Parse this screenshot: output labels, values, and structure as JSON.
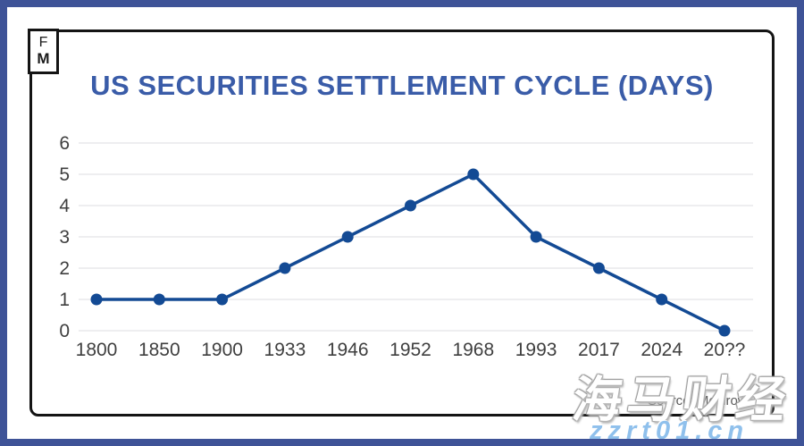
{
  "logo": {
    "line1": "F",
    "line2": "M"
  },
  "title": "US SECURITIES SETTLEMENT CYCLE (DAYS)",
  "source_note": "Source: Mesirow",
  "watermark": {
    "cjk": "海马财经",
    "url": "zzrt01.cn"
  },
  "colors": {
    "frame": "#3e5397",
    "title": "#3a5ca8",
    "line": "#134a94",
    "point": "#134a94",
    "grid": "#e9e9ec",
    "axis_text": "#3f3f3f"
  },
  "chart_data": {
    "type": "line",
    "title": "US SECURITIES SETTLEMENT CYCLE (DAYS)",
    "categories": [
      "1800",
      "1850",
      "1900",
      "1933",
      "1946",
      "1952",
      "1968",
      "1993",
      "2017",
      "2024",
      "20??"
    ],
    "values": [
      1,
      1,
      1,
      2,
      3,
      4,
      5,
      3,
      2,
      1,
      0
    ],
    "xlabel": "",
    "ylabel": "",
    "ylim": [
      0,
      6
    ],
    "yticks": [
      0,
      1,
      2,
      3,
      4,
      5,
      6
    ],
    "grid": "horizontal-only",
    "legend": "none",
    "marker": "circle"
  }
}
